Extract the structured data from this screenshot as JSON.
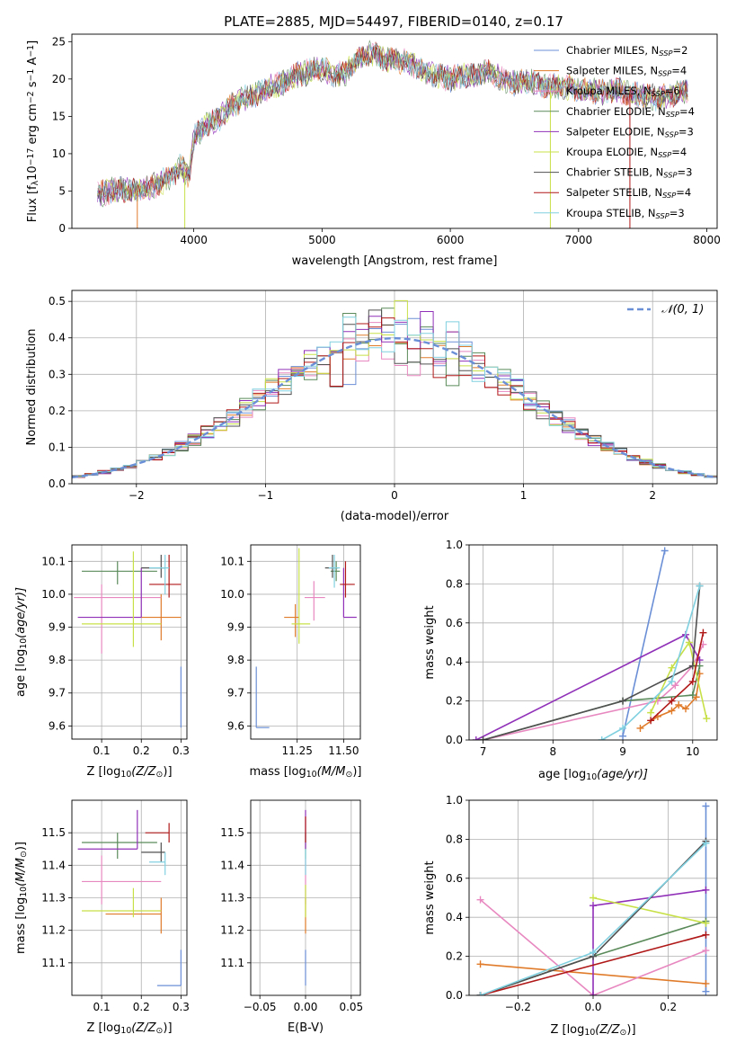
{
  "title": "PLATE=2885, MJD=54497, FIBERID=0140, z=0.17",
  "colors": {
    "Chabrier MILES": "#6b8fd6",
    "Salpeter MILES": "#e07b2a",
    "Kroupa MILES": "#e888c0",
    "Chabrier ELODIE": "#5a8a5a",
    "Salpeter ELODIE": "#9030b8",
    "Kroupa ELODIE": "#c8e048",
    "Chabrier STELIB": "#505050",
    "Salpeter STELIB": "#b01818",
    "Kroupa STELIB": "#80d0e0",
    "normal": "#6b8fd6",
    "grid": "#b0b0b0"
  },
  "chart_data": [
    {
      "id": "spectrum",
      "type": "line",
      "xlabel": "wavelength [Angstrom, rest frame]",
      "ylabel": "Flux [f",
      "ylabel_parts": [
        "Flux [f",
        "λ",
        "10",
        "−17",
        " erg cm",
        "−2",
        " s",
        "−1",
        " A",
        "−1",
        "]"
      ],
      "xlim": [
        3050,
        8080
      ],
      "ylim": [
        0,
        26
      ],
      "xticks": [
        4000,
        5000,
        6000,
        7000,
        8000
      ],
      "yticks": [
        0,
        5,
        10,
        15,
        20,
        25
      ],
      "grid": false,
      "legend_position": "top-right",
      "legend": [
        {
          "label": "Chabrier MILES, N",
          "sub": "SSP",
          "tail": "=2",
          "key": "Chabrier MILES"
        },
        {
          "label": "Salpeter MILES, N",
          "sub": "SSP",
          "tail": "=4",
          "key": "Salpeter MILES"
        },
        {
          "label": "Kroupa MILES, N",
          "sub": "SSP",
          "tail": "=6",
          "key": "Kroupa MILES"
        },
        {
          "label": "Chabrier ELODIE, N",
          "sub": "SSP",
          "tail": "=4",
          "key": "Chabrier ELODIE"
        },
        {
          "label": "Salpeter ELODIE, N",
          "sub": "SSP",
          "tail": "=3",
          "key": "Salpeter ELODIE"
        },
        {
          "label": "Kroupa ELODIE, N",
          "sub": "SSP",
          "tail": "=4",
          "key": "Kroupa ELODIE"
        },
        {
          "label": "Chabrier STELIB, N",
          "sub": "SSP",
          "tail": "=3",
          "key": "Chabrier STELIB"
        },
        {
          "label": "Salpeter STELIB, N",
          "sub": "SSP",
          "tail": "=4",
          "key": "Salpeter STELIB"
        },
        {
          "label": "Kroupa STELIB, N",
          "sub": "SSP",
          "tail": "=3",
          "key": "Kroupa STELIB"
        }
      ],
      "x": [
        3250,
        3400,
        3550,
        3700,
        3800,
        3900,
        3960,
        4000,
        4100,
        4200,
        4300,
        4400,
        4500,
        4600,
        4700,
        4800,
        4900,
        5000,
        5100,
        5200,
        5300,
        5400,
        5500,
        5600,
        5700,
        5800,
        5900,
        6000,
        6100,
        6200,
        6300,
        6400,
        6500,
        6600,
        6700,
        6800,
        6900,
        7000,
        7100,
        7200,
        7300,
        7400,
        7500,
        7600,
        7700,
        7850
      ],
      "y": [
        4.5,
        5.2,
        5.0,
        5.8,
        6.8,
        8.2,
        7.0,
        12.0,
        14.0,
        14.8,
        16.5,
        17.5,
        18.0,
        18.8,
        19.5,
        20.5,
        21.0,
        21.5,
        20.5,
        21.0,
        23.0,
        23.5,
        22.5,
        22.5,
        22.0,
        21.0,
        20.5,
        20.0,
        20.5,
        20.5,
        21.0,
        20.0,
        19.5,
        19.8,
        19.2,
        19.0,
        19.0,
        18.5,
        18.5,
        18.2,
        18.5,
        18.0,
        17.8,
        17.5,
        17.8,
        18.5
      ],
      "dropouts": [
        3560,
        3930,
        6780,
        7400
      ]
    },
    {
      "id": "residuals",
      "type": "histogram",
      "xlabel": "(data-model)/error",
      "ylabel": "Normed distribution",
      "xlim": [
        -2.5,
        2.5
      ],
      "ylim": [
        0,
        0.53
      ],
      "xticks": [
        -2,
        -1,
        0,
        1,
        2
      ],
      "xtick_labels": [
        "−2",
        "−1",
        "0",
        "1",
        "2"
      ],
      "yticks": [
        0.0,
        0.1,
        0.2,
        0.3,
        0.4,
        0.5
      ],
      "grid": true,
      "legend_position": "top-right",
      "legend_label": "𝒩(0, 1)",
      "bin_width": 0.1
    },
    {
      "id": "age_vs_Z",
      "type": "scatter",
      "xlabel": "Z [log",
      "xlabel_parts": [
        "Z [log",
        "10",
        "(Z/Z",
        "⊙",
        ")]"
      ],
      "ylabel": "age  [log",
      "ylabel_parts": [
        "age  [log",
        "10",
        "(age/yr)]"
      ],
      "xlim": [
        0.025,
        0.315
      ],
      "ylim": [
        9.56,
        10.15
      ],
      "xticks": [
        0.1,
        0.2,
        0.3
      ],
      "yticks": [
        9.6,
        9.7,
        9.8,
        9.9,
        10.0,
        10.1
      ],
      "grid": true,
      "points": [
        {
          "key": "Chabrier MILES",
          "x": 0.3,
          "y": 9.595,
          "xerr": [
            0.3,
            0.3
          ],
          "yerr": [
            9.595,
            9.78
          ],
          "xlo": 0.24
        },
        {
          "key": "Salpeter MILES",
          "x": 0.25,
          "y": 9.93,
          "xerr": [
            0.2,
            0.3
          ],
          "yerr": [
            9.86,
            10.0
          ]
        },
        {
          "key": "Kroupa MILES",
          "x": 0.1,
          "y": 9.99,
          "xerr": [
            0.03,
            0.25
          ],
          "yerr": [
            9.82,
            10.03
          ]
        },
        {
          "key": "Chabrier ELODIE",
          "x": 0.14,
          "y": 10.07,
          "xerr": [
            0.05,
            0.24
          ],
          "yerr": [
            10.03,
            10.1
          ]
        },
        {
          "key": "Salpeter ELODIE",
          "x": 0.2,
          "y": 9.93,
          "xerr": [
            0.04,
            0.2
          ],
          "yerr": [
            9.93,
            10.08
          ]
        },
        {
          "key": "Kroupa ELODIE",
          "x": 0.18,
          "y": 9.91,
          "xerr": [
            0.05,
            0.25
          ],
          "yerr": [
            9.84,
            10.13
          ]
        },
        {
          "key": "Chabrier STELIB",
          "x": 0.25,
          "y": 10.08,
          "xerr": [
            0.2,
            0.26
          ],
          "yerr": [
            10.05,
            10.12
          ]
        },
        {
          "key": "Salpeter STELIB",
          "x": 0.27,
          "y": 10.03,
          "xerr": [
            0.22,
            0.3
          ],
          "yerr": [
            9.99,
            10.12
          ]
        },
        {
          "key": "Kroupa STELIB",
          "x": 0.26,
          "y": 10.08,
          "xerr": [
            0.22,
            0.27
          ],
          "yerr": [
            10.0,
            10.12
          ]
        }
      ]
    },
    {
      "id": "age_vs_mass",
      "type": "scatter",
      "xlabel": "mass [log",
      "xlabel_parts": [
        "mass [log",
        "10",
        "(M/M",
        "⊙",
        ")]"
      ],
      "xlim": [
        11.0,
        11.59
      ],
      "ylim": [
        9.56,
        10.15
      ],
      "xticks": [
        11.25,
        11.5
      ],
      "xtick_labels": [
        "11.25",
        "11.50"
      ],
      "yticks": [
        9.6,
        9.7,
        9.8,
        9.9,
        10.0,
        10.1
      ],
      "grid": true,
      "points": [
        {
          "key": "Chabrier MILES",
          "x": 11.03,
          "y": 9.595,
          "xerr": [
            11.03,
            11.1
          ],
          "yerr": [
            9.595,
            9.78
          ]
        },
        {
          "key": "Salpeter MILES",
          "x": 11.24,
          "y": 9.93,
          "xerr": [
            11.18,
            11.26
          ],
          "yerr": [
            9.87,
            9.97
          ]
        },
        {
          "key": "Kroupa MILES",
          "x": 11.34,
          "y": 9.99,
          "xerr": [
            11.29,
            11.4
          ],
          "yerr": [
            9.92,
            10.04
          ]
        },
        {
          "key": "Chabrier ELODIE",
          "x": 11.46,
          "y": 10.07,
          "xerr": [
            11.43,
            11.48
          ],
          "yerr": [
            10.04,
            10.1
          ]
        },
        {
          "key": "Salpeter ELODIE",
          "x": 11.5,
          "y": 9.93,
          "xerr": [
            11.5,
            11.57
          ],
          "yerr": [
            9.93,
            10.08
          ]
        },
        {
          "key": "Kroupa ELODIE",
          "x": 11.26,
          "y": 9.91,
          "xerr": [
            11.22,
            11.32
          ],
          "yerr": [
            9.85,
            10.14
          ]
        },
        {
          "key": "Chabrier STELIB",
          "x": 11.44,
          "y": 10.08,
          "xerr": [
            11.4,
            11.47
          ],
          "yerr": [
            10.05,
            10.12
          ]
        },
        {
          "key": "Salpeter STELIB",
          "x": 11.51,
          "y": 10.03,
          "xerr": [
            11.48,
            11.56
          ],
          "yerr": [
            9.99,
            10.1
          ]
        },
        {
          "key": "Kroupa STELIB",
          "x": 11.45,
          "y": 10.08,
          "xerr": [
            11.42,
            11.48
          ],
          "yerr": [
            10.02,
            10.12
          ]
        }
      ]
    },
    {
      "id": "weight_vs_age",
      "type": "line",
      "xlabel": "age  [log",
      "xlabel_parts": [
        "age  [log",
        "10",
        "(age/yr)]"
      ],
      "ylabel": "mass weight",
      "xlim": [
        6.8,
        10.35
      ],
      "ylim": [
        0,
        1.0
      ],
      "xticks": [
        7,
        8,
        9,
        10
      ],
      "yticks": [
        0.0,
        0.2,
        0.4,
        0.6,
        0.8,
        1.0
      ],
      "grid": true,
      "series": [
        {
          "key": "Chabrier MILES",
          "x": [
            9.0,
            9.6
          ],
          "y": [
            0.02,
            0.97
          ]
        },
        {
          "key": "Salpeter MILES",
          "x": [
            9.25,
            9.5,
            9.7,
            9.8,
            9.9,
            10.05,
            10.1
          ],
          "y": [
            0.06,
            0.12,
            0.15,
            0.18,
            0.16,
            0.22,
            0.34
          ]
        },
        {
          "key": "Kroupa MILES",
          "x": [
            7.0,
            9.5,
            9.75,
            10.0,
            10.15
          ],
          "y": [
            0.0,
            0.2,
            0.28,
            0.38,
            0.49
          ]
        },
        {
          "key": "Chabrier ELODIE",
          "x": [
            7.0,
            9.0,
            10.0,
            10.1
          ],
          "y": [
            0.0,
            0.2,
            0.23,
            0.38
          ]
        },
        {
          "key": "Salpeter ELODIE",
          "x": [
            6.9,
            9.9,
            10.1
          ],
          "y": [
            0.0,
            0.54,
            0.41
          ]
        },
        {
          "key": "Kroupa ELODIE",
          "x": [
            9.4,
            9.7,
            9.95,
            10.2
          ],
          "y": [
            0.14,
            0.37,
            0.5,
            0.11
          ]
        },
        {
          "key": "Chabrier STELIB",
          "x": [
            7.0,
            9.0,
            10.0,
            10.1
          ],
          "y": [
            0.0,
            0.2,
            0.38,
            0.79
          ]
        },
        {
          "key": "Salpeter STELIB",
          "x": [
            9.4,
            9.7,
            10.0,
            10.15
          ],
          "y": [
            0.1,
            0.2,
            0.3,
            0.55
          ]
        },
        {
          "key": "Kroupa STELIB",
          "x": [
            8.7,
            9.0,
            9.7,
            10.1
          ],
          "y": [
            0.0,
            0.06,
            0.3,
            0.79
          ]
        }
      ]
    },
    {
      "id": "mass_vs_Z",
      "type": "scatter",
      "xlabel": "Z [log",
      "xlabel_parts": [
        "Z [log",
        "10",
        "(Z/Z",
        "⊙",
        ")]"
      ],
      "ylabel": "mass [log",
      "ylabel_parts": [
        "mass [log",
        "10",
        "(M/M",
        "⊙",
        ")]"
      ],
      "xlim": [
        0.025,
        0.315
      ],
      "ylim": [
        11.0,
        11.6
      ],
      "xticks": [
        0.1,
        0.2,
        0.3
      ],
      "yticks": [
        11.1,
        11.2,
        11.3,
        11.4,
        11.5
      ],
      "grid": true,
      "points": [
        {
          "key": "Chabrier MILES",
          "x": 0.3,
          "y": 11.03,
          "xerr": [
            0.24,
            0.3
          ],
          "yerr": [
            11.03,
            11.14
          ]
        },
        {
          "key": "Salpeter MILES",
          "x": 0.25,
          "y": 11.25,
          "xerr": [
            0.11,
            0.25
          ],
          "yerr": [
            11.19,
            11.3
          ]
        },
        {
          "key": "Kroupa MILES",
          "x": 0.1,
          "y": 11.35,
          "xerr": [
            0.05,
            0.25
          ],
          "yerr": [
            11.28,
            11.43
          ]
        },
        {
          "key": "Chabrier ELODIE",
          "x": 0.14,
          "y": 11.47,
          "xerr": [
            0.05,
            0.24
          ],
          "yerr": [
            11.42,
            11.5
          ]
        },
        {
          "key": "Salpeter ELODIE",
          "x": 0.19,
          "y": 11.45,
          "xerr": [
            0.04,
            0.19
          ],
          "yerr": [
            11.45,
            11.57
          ]
        },
        {
          "key": "Kroupa ELODIE",
          "x": 0.18,
          "y": 11.26,
          "xerr": [
            0.05,
            0.25
          ],
          "yerr": [
            11.24,
            11.33
          ]
        },
        {
          "key": "Chabrier STELIB",
          "x": 0.25,
          "y": 11.44,
          "xerr": [
            0.2,
            0.26
          ],
          "yerr": [
            11.41,
            11.47
          ]
        },
        {
          "key": "Salpeter STELIB",
          "x": 0.27,
          "y": 11.5,
          "xerr": [
            0.21,
            0.27
          ],
          "yerr": [
            11.47,
            11.53
          ]
        },
        {
          "key": "Kroupa STELIB",
          "x": 0.26,
          "y": 11.41,
          "xerr": [
            0.22,
            0.26
          ],
          "yerr": [
            11.37,
            11.44
          ]
        }
      ]
    },
    {
      "id": "mass_vs_ebv",
      "type": "scatter",
      "xlabel": "E(B-V)",
      "xlim": [
        -0.06,
        0.06
      ],
      "ylim": [
        11.0,
        11.6
      ],
      "xticks": [
        -0.05,
        0.0,
        0.05
      ],
      "xtick_labels": [
        "−0.05",
        "0.00",
        "0.05"
      ],
      "yticks": [
        11.1,
        11.2,
        11.3,
        11.4,
        11.5
      ],
      "grid": true,
      "points": [
        {
          "key": "Chabrier MILES",
          "x": 0,
          "y": 11.03,
          "yerr": [
            11.03,
            11.14
          ]
        },
        {
          "key": "Salpeter MILES",
          "x": 0,
          "y": 11.24,
          "yerr": [
            11.19,
            11.3
          ]
        },
        {
          "key": "Kroupa MILES",
          "x": 0,
          "y": 11.34,
          "yerr": [
            11.28,
            11.42
          ]
        },
        {
          "key": "Kroupa ELODIE",
          "x": 0,
          "y": 11.26,
          "yerr": [
            11.24,
            11.34
          ]
        },
        {
          "key": "Chabrier ELODIE",
          "x": 0,
          "y": 11.45,
          "yerr": [
            11.42,
            11.5
          ]
        },
        {
          "key": "Salpeter ELODIE",
          "x": 0,
          "y": 11.5,
          "yerr": [
            11.45,
            11.57
          ]
        },
        {
          "key": "Salpeter STELIB",
          "x": 0,
          "y": 11.5,
          "yerr": [
            11.47,
            11.55
          ]
        },
        {
          "key": "Kroupa STELIB",
          "x": 0,
          "y": 11.41,
          "yerr": [
            11.37,
            11.45
          ]
        }
      ]
    },
    {
      "id": "weight_vs_Z",
      "type": "line",
      "xlabel": "Z [log",
      "xlabel_parts": [
        "Z [log",
        "10",
        "(Z/Z",
        "⊙",
        ")]"
      ],
      "ylabel": "mass weight",
      "xlim": [
        -0.33,
        0.33
      ],
      "ylim": [
        0,
        1.0
      ],
      "xticks": [
        -0.2,
        0.0,
        0.2
      ],
      "xtick_labels": [
        "−0.2",
        "0.0",
        "0.2"
      ],
      "yticks": [
        0.0,
        0.2,
        0.4,
        0.6,
        0.8,
        1.0
      ],
      "grid": true,
      "series": [
        {
          "key": "Chabrier MILES",
          "x": [
            0.3,
            0.3
          ],
          "y": [
            0.02,
            0.97
          ]
        },
        {
          "key": "Salpeter MILES",
          "x": [
            -0.3,
            0.3
          ],
          "y": [
            0.16,
            0.06
          ]
        },
        {
          "key": "Kroupa MILES",
          "x": [
            -0.3,
            0.0,
            0.3
          ],
          "y": [
            0.49,
            0.0,
            0.23
          ]
        },
        {
          "key": "Chabrier ELODIE",
          "x": [
            -0.3,
            0.0,
            0.3
          ],
          "y": [
            0.0,
            0.2,
            0.38
          ]
        },
        {
          "key": "Salpeter ELODIE",
          "x": [
            0.0,
            0.0,
            0.3
          ],
          "y": [
            0.0,
            0.46,
            0.54
          ]
        },
        {
          "key": "Kroupa ELODIE",
          "x": [
            0.0,
            0.3
          ],
          "y": [
            0.5,
            0.37
          ]
        },
        {
          "key": "Chabrier STELIB",
          "x": [
            -0.3,
            0.0,
            0.3
          ],
          "y": [
            0.0,
            0.2,
            0.79
          ]
        },
        {
          "key": "Salpeter STELIB",
          "x": [
            -0.3,
            0.3
          ],
          "y": [
            0.0,
            0.31
          ]
        },
        {
          "key": "Kroupa STELIB",
          "x": [
            -0.3,
            0.0,
            0.3
          ],
          "y": [
            0.0,
            0.22,
            0.78
          ]
        }
      ]
    }
  ]
}
